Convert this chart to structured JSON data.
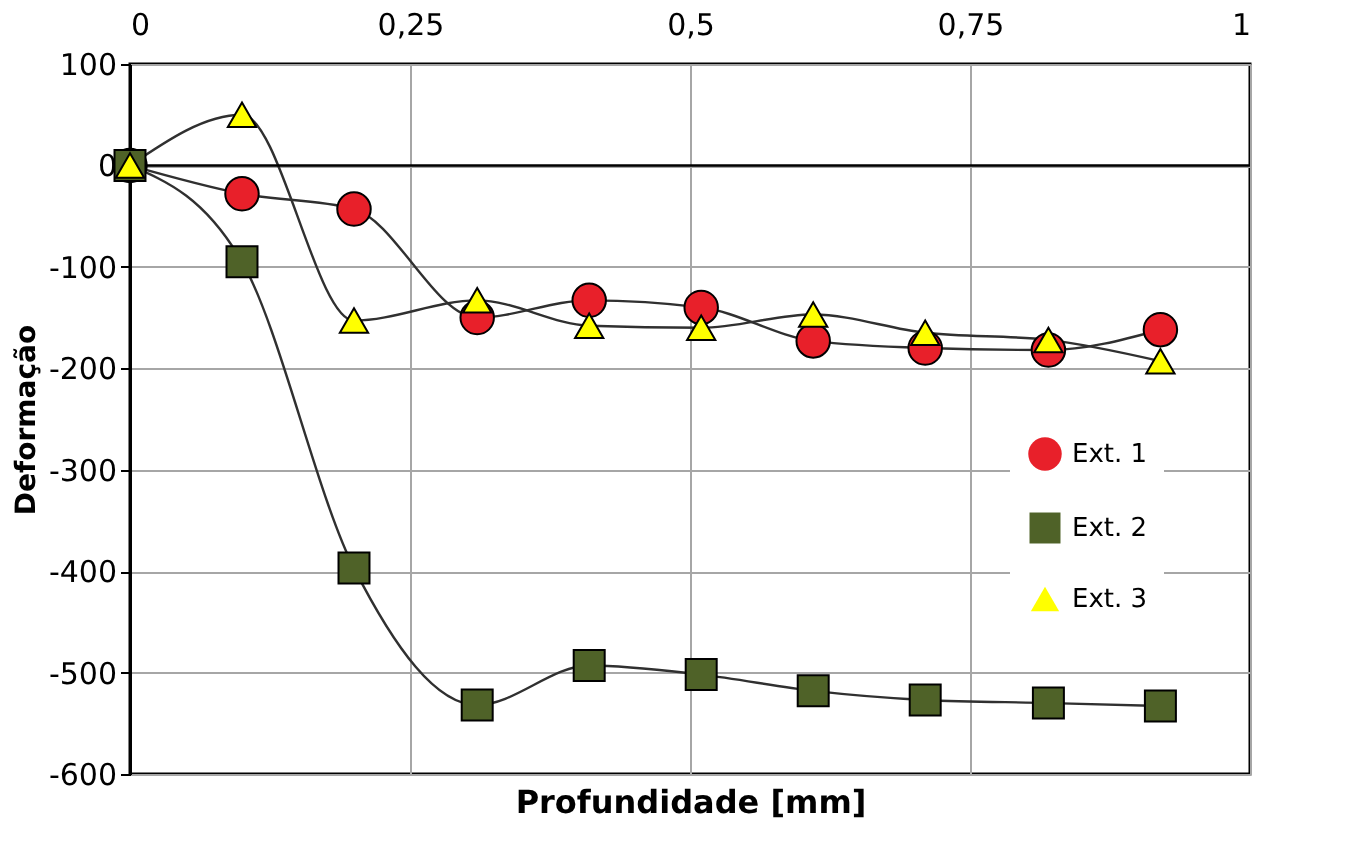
{
  "chart_data": {
    "type": "line",
    "xlabel": "Profundidade [mm]",
    "ylabel": "Deformação",
    "x": [
      0,
      0.1,
      0.2,
      0.31,
      0.41,
      0.51,
      0.61,
      0.71,
      0.82,
      0.92
    ],
    "series": [
      {
        "name": "Ext. 1",
        "color": "#e8202a",
        "marker": "circle",
        "values": [
          0,
          -28,
          -43,
          -150,
          -133,
          -140,
          -173,
          -180,
          -182,
          -162
        ]
      },
      {
        "name": "Ext. 2",
        "color": "#4f6228",
        "marker": "square",
        "values": [
          0,
          -95,
          -397,
          -532,
          -493,
          -502,
          -518,
          -527,
          -530,
          -533
        ]
      },
      {
        "name": "Ext. 3",
        "color": "#ffff00",
        "marker": "triangle",
        "values": [
          0,
          50,
          -153,
          -133,
          -158,
          -160,
          -147,
          -165,
          -172,
          -193
        ]
      }
    ],
    "xlim": [
      0,
      1
    ],
    "xticks": [
      0,
      {
        "value": 0.25,
        "label": "0,25"
      },
      {
        "value": 0.5,
        "label": "0,5"
      },
      {
        "value": 0.75,
        "label": "0,75"
      },
      1
    ],
    "ylim": [
      -600,
      100
    ],
    "yticks": [
      -600,
      -500,
      -400,
      -300,
      -200,
      -100,
      0,
      100
    ],
    "grid": true,
    "legend": "right",
    "line_style": "solid"
  }
}
